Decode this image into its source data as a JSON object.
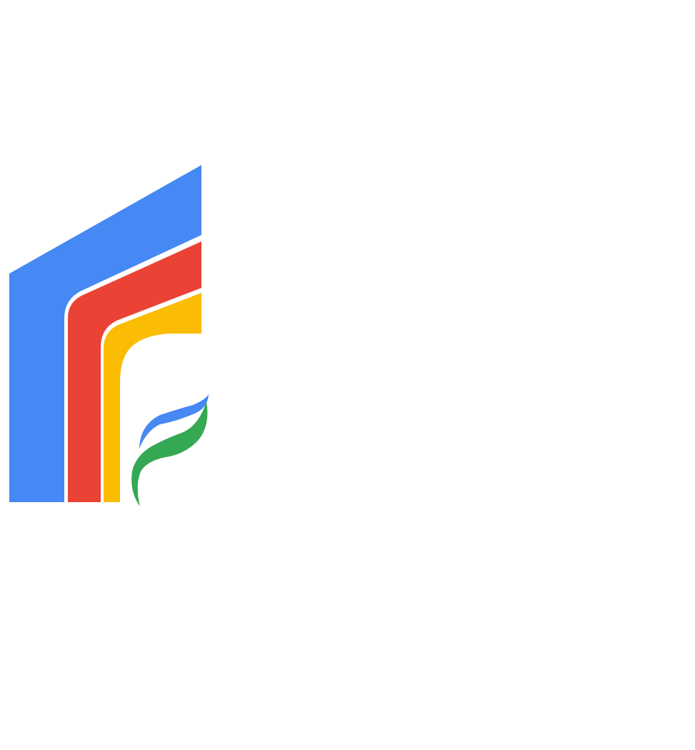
{
  "logo": {
    "icon": "book-sprout-logo",
    "colors": {
      "blue": "#4688F4",
      "red": "#EA4335",
      "yellow": "#FBBC04",
      "green": "#34A853",
      "leaf_blue": "#4688F4",
      "background": "#FFFFFF"
    }
  }
}
